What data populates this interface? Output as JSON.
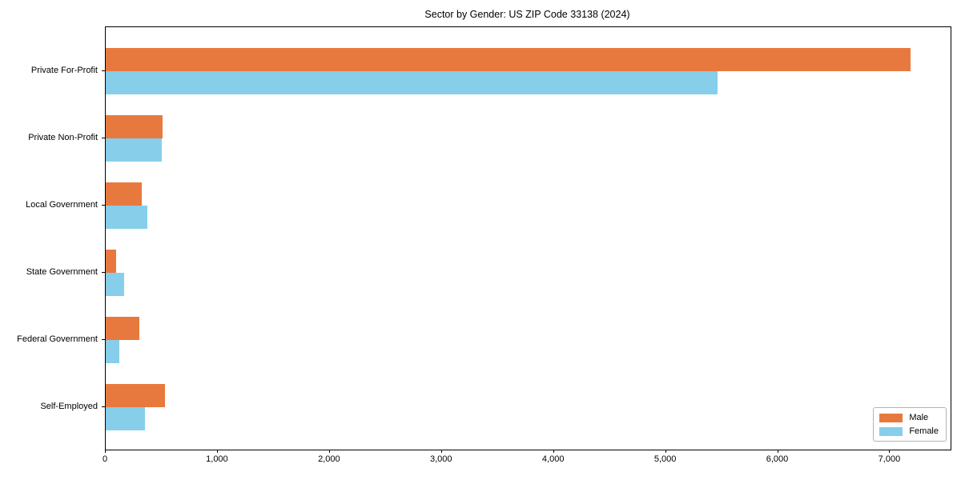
{
  "title": "Sector by Gender: US ZIP Code 33138 (2024)",
  "colors": {
    "male": "#e8793e",
    "female": "#87ceeb",
    "spine": "#000000",
    "text": "#000000",
    "legend_border": "#b4b4b4",
    "background": "#ffffff"
  },
  "chart_data": {
    "type": "bar",
    "orientation": "horizontal",
    "title": "Sector by Gender: US ZIP Code 33138 (2024)",
    "xlabel": "",
    "ylabel": "",
    "grid": false,
    "legend_position": "lower right",
    "xlim": [
      0,
      7540
    ],
    "categories": [
      "Private For-Profit",
      "Private Non-Profit",
      "Local Government",
      "State Government",
      "Federal Government",
      "Self-Employed"
    ],
    "series": [
      {
        "name": "Male",
        "color": "#e8793e",
        "values": [
          7180,
          505,
          325,
          90,
          300,
          530
        ]
      },
      {
        "name": "Female",
        "color": "#87ceeb",
        "values": [
          5460,
          500,
          375,
          165,
          118,
          350
        ]
      }
    ],
    "x_ticks": [
      {
        "value": 0,
        "label": "0"
      },
      {
        "value": 1000,
        "label": "1,000"
      },
      {
        "value": 2000,
        "label": "2,000"
      },
      {
        "value": 3000,
        "label": "3,000"
      },
      {
        "value": 4000,
        "label": "4,000"
      },
      {
        "value": 5000,
        "label": "5,000"
      },
      {
        "value": 6000,
        "label": "6,000"
      },
      {
        "value": 7000,
        "label": "7,000"
      }
    ]
  },
  "legend": {
    "entries": [
      {
        "label": "Male"
      },
      {
        "label": "Female"
      }
    ]
  }
}
